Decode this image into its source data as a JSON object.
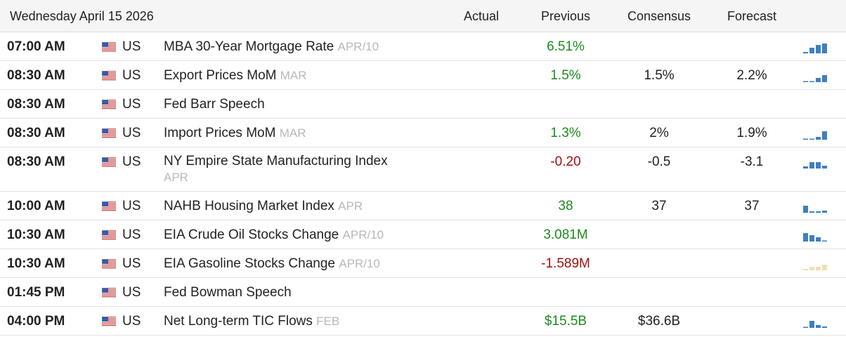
{
  "header": {
    "date": "Wednesday April 15 2026",
    "columns": [
      "Actual",
      "Previous",
      "Consensus",
      "Forecast"
    ]
  },
  "rows": [
    {
      "time": "07:00 AM",
      "country": "US",
      "event": "MBA 30-Year Mortgage Rate",
      "period": "APR/10",
      "previous": "6.51%",
      "previous_color": "#1d8a1d"
    },
    {
      "time": "08:30 AM",
      "country": "US",
      "event": "Export Prices MoM",
      "period": "MAR",
      "previous": "1.5%",
      "previous_color": "#1d8a1d",
      "consensus": "1.5%",
      "forecast": "2.2%"
    },
    {
      "time": "08:30 AM",
      "country": "US",
      "event": "Fed Barr Speech"
    },
    {
      "time": "08:30 AM",
      "country": "US",
      "event": "Import Prices MoM",
      "period": "MAR",
      "previous": "1.3%",
      "previous_color": "#1d8a1d",
      "consensus": "2%",
      "forecast": "1.9%"
    },
    {
      "time": "08:30 AM",
      "country": "US",
      "event": "NY Empire State Manufacturing Index",
      "period": "APR",
      "previous": "-0.20",
      "previous_color": "#a01010",
      "consensus": "-0.5",
      "forecast": "-3.1"
    },
    {
      "time": "10:00 AM",
      "country": "US",
      "event": "NAHB Housing Market Index",
      "period": "APR",
      "previous": "38",
      "previous_color": "#1d8a1d",
      "consensus": "37",
      "forecast": "37"
    },
    {
      "time": "10:30 AM",
      "country": "US",
      "event": "EIA Crude Oil Stocks Change",
      "period": "APR/10",
      "previous": "3.081M",
      "previous_color": "#1d8a1d"
    },
    {
      "time": "10:30 AM",
      "country": "US",
      "event": "EIA Gasoline Stocks Change",
      "period": "APR/10",
      "previous": "-1.589M",
      "previous_color": "#a01010"
    },
    {
      "time": "01:45 PM",
      "country": "US",
      "event": "Fed Bowman Speech"
    },
    {
      "time": "04:00 PM",
      "country": "US",
      "event": "Net Long-term TIC Flows",
      "period": "FEB",
      "previous": "$15.5B",
      "previous_color": "#1d8a1d",
      "consensus": "$36.6B"
    }
  ]
}
